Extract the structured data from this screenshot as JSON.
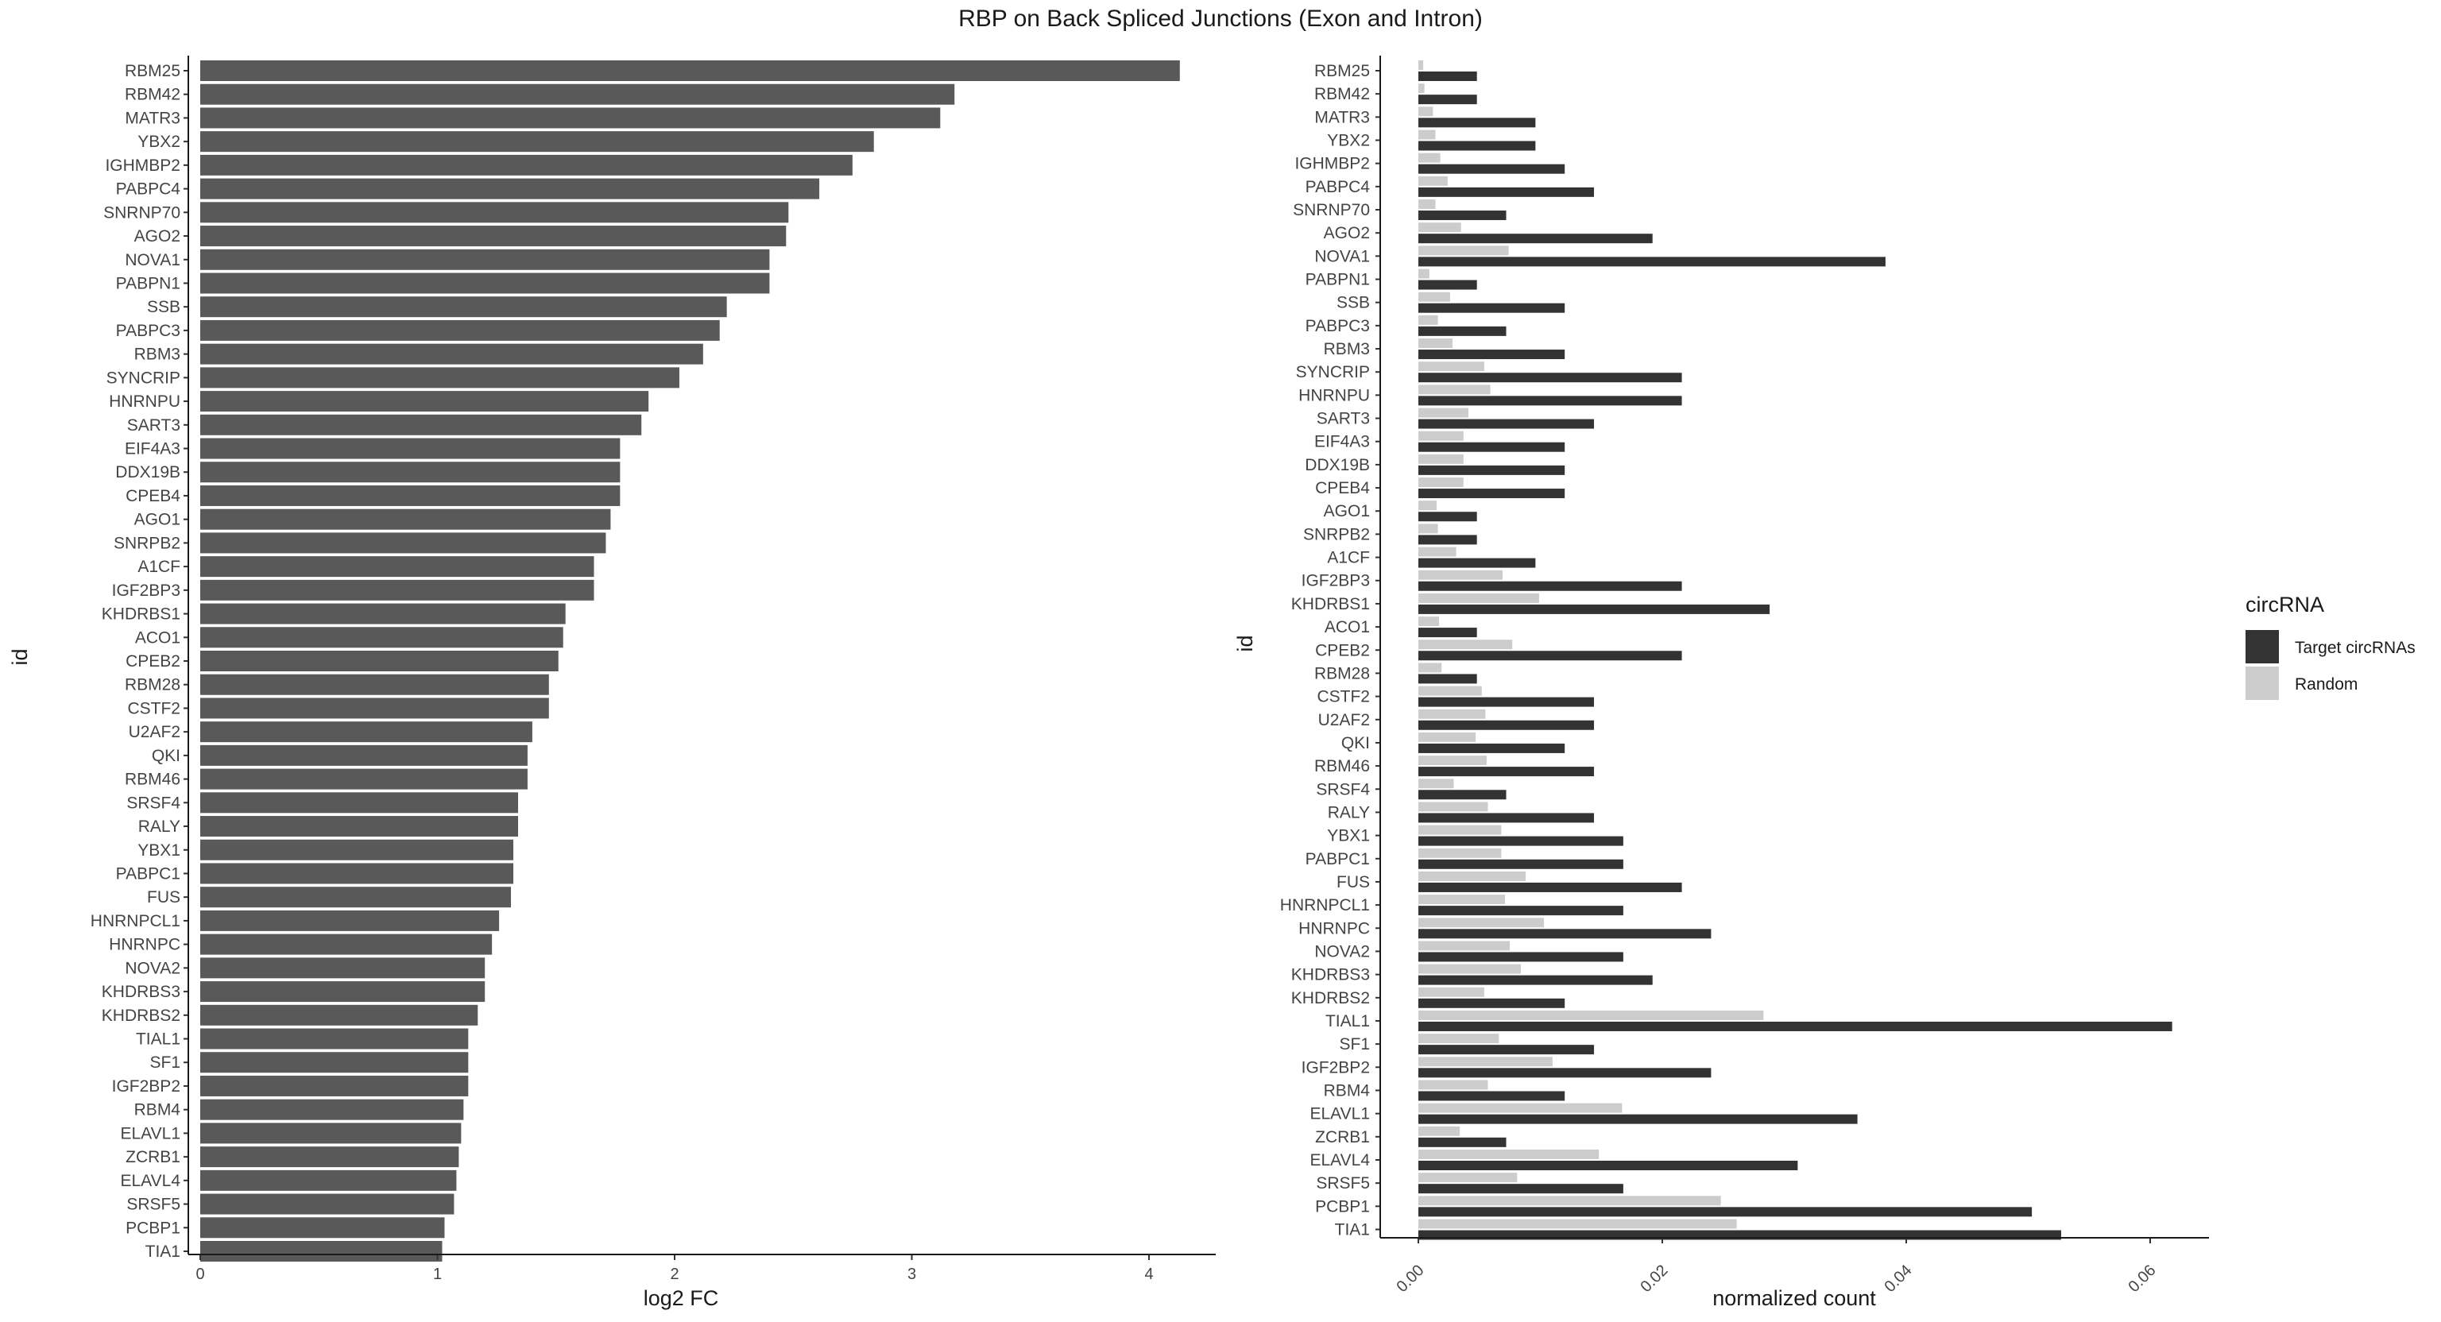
{
  "title": "RBP on Back Spliced Junctions (Exon and Intron)",
  "chart_data": [
    {
      "type": "bar",
      "orientation": "horizontal",
      "xlabel": "log2 FC",
      "ylabel": "id",
      "xlim": [
        0,
        4.3
      ],
      "xticks": [
        "0",
        "1",
        "2",
        "3",
        "4"
      ],
      "bar_color": "#595959",
      "categories": [
        "RBM25",
        "RBM42",
        "MATR3",
        "YBX2",
        "IGHMBP2",
        "PABPC4",
        "SNRNP70",
        "AGO2",
        "NOVA1",
        "PABPN1",
        "SSB",
        "PABPC3",
        "RBM3",
        "SYNCRIP",
        "HNRNPU",
        "SART3",
        "EIF4A3",
        "DDX19B",
        "CPEB4",
        "AGO1",
        "SNRPB2",
        "A1CF",
        "IGF2BP3",
        "KHDRBS1",
        "ACO1",
        "CPEB2",
        "RBM28",
        "CSTF2",
        "U2AF2",
        "QKI",
        "RBM46",
        "SRSF4",
        "RALY",
        "YBX1",
        "PABPC1",
        "FUS",
        "HNRNPCL1",
        "HNRNPC",
        "NOVA2",
        "KHDRBS3",
        "KHDRBS2",
        "TIAL1",
        "SF1",
        "IGF2BP2",
        "RBM4",
        "ELAVL1",
        "ZCRB1",
        "ELAVL4",
        "SRSF5",
        "PCBP1",
        "TIA1"
      ],
      "values": [
        4.13,
        3.18,
        3.12,
        2.84,
        2.75,
        2.61,
        2.48,
        2.47,
        2.4,
        2.4,
        2.22,
        2.19,
        2.12,
        2.02,
        1.89,
        1.86,
        1.77,
        1.77,
        1.77,
        1.73,
        1.71,
        1.66,
        1.66,
        1.54,
        1.53,
        1.51,
        1.47,
        1.47,
        1.4,
        1.38,
        1.38,
        1.34,
        1.34,
        1.32,
        1.32,
        1.31,
        1.26,
        1.23,
        1.2,
        1.2,
        1.17,
        1.13,
        1.13,
        1.13,
        1.11,
        1.1,
        1.09,
        1.08,
        1.07,
        1.03,
        1.02
      ]
    },
    {
      "type": "bar",
      "orientation": "horizontal",
      "grouped": true,
      "xlabel": "normalized count",
      "ylabel": "id",
      "xlim": [
        0,
        0.065
      ],
      "xticks": [
        "0.00",
        "0.02",
        "0.04",
        "0.06"
      ],
      "categories": [
        "RBM25",
        "RBM42",
        "MATR3",
        "YBX2",
        "IGHMBP2",
        "PABPC4",
        "SNRNP70",
        "AGO2",
        "NOVA1",
        "PABPN1",
        "SSB",
        "PABPC3",
        "RBM3",
        "SYNCRIP",
        "HNRNPU",
        "SART3",
        "EIF4A3",
        "DDX19B",
        "CPEB4",
        "AGO1",
        "SNRPB2",
        "A1CF",
        "IGF2BP3",
        "KHDRBS1",
        "ACO1",
        "CPEB2",
        "RBM28",
        "CSTF2",
        "U2AF2",
        "QKI",
        "RBM46",
        "SRSF4",
        "RALY",
        "YBX1",
        "PABPC1",
        "FUS",
        "HNRNPCL1",
        "HNRNPC",
        "NOVA2",
        "KHDRBS3",
        "KHDRBS2",
        "TIAL1",
        "SF1",
        "IGF2BP2",
        "RBM4",
        "ELAVL1",
        "ZCRB1",
        "ELAVL4",
        "SRSF5",
        "PCBP1",
        "TIA1"
      ],
      "legend": {
        "title": "circRNA",
        "position": "right"
      },
      "series": [
        {
          "name": "Random",
          "color": "#cccccc",
          "values": [
            0.0004,
            0.0005,
            0.0012,
            0.0014,
            0.0018,
            0.0024,
            0.0014,
            0.0035,
            0.0074,
            0.0009,
            0.0026,
            0.0016,
            0.0028,
            0.0054,
            0.0059,
            0.0041,
            0.0037,
            0.0037,
            0.0037,
            0.0015,
            0.0016,
            0.0031,
            0.0069,
            0.0099,
            0.0017,
            0.0077,
            0.0019,
            0.0052,
            0.0055,
            0.0047,
            0.0056,
            0.0029,
            0.0057,
            0.0068,
            0.0068,
            0.0088,
            0.0071,
            0.0103,
            0.0075,
            0.0084,
            0.0054,
            0.0283,
            0.0066,
            0.011,
            0.0057,
            0.0167,
            0.0034,
            0.0148,
            0.0081,
            0.0248,
            0.0261
          ]
        },
        {
          "name": "Target circRNAs",
          "color": "#333333",
          "values": [
            0.0048,
            0.0048,
            0.0096,
            0.0096,
            0.012,
            0.0144,
            0.0072,
            0.0192,
            0.0383,
            0.0048,
            0.012,
            0.0072,
            0.012,
            0.0216,
            0.0216,
            0.0144,
            0.012,
            0.012,
            0.012,
            0.0048,
            0.0048,
            0.0096,
            0.0216,
            0.0288,
            0.0048,
            0.0216,
            0.0048,
            0.0144,
            0.0144,
            0.012,
            0.0144,
            0.0072,
            0.0144,
            0.0168,
            0.0168,
            0.0216,
            0.0168,
            0.024,
            0.0168,
            0.0192,
            0.012,
            0.0618,
            0.0144,
            0.024,
            0.012,
            0.036,
            0.0072,
            0.0311,
            0.0168,
            0.0503,
            0.0527
          ]
        }
      ]
    }
  ]
}
